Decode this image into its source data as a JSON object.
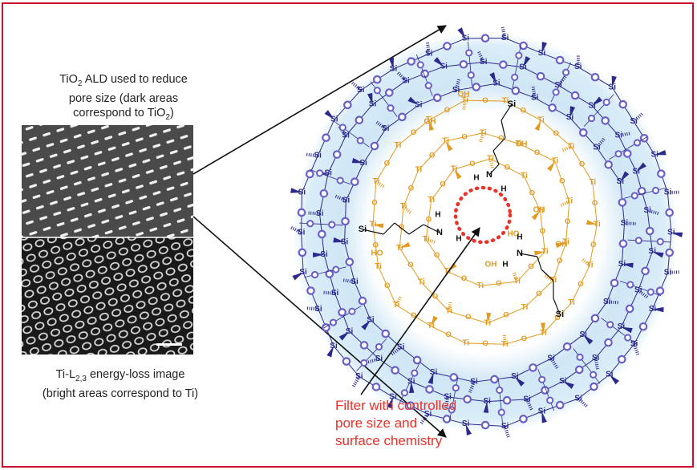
{
  "captions": {
    "top_line1": "TiO",
    "top_sub": "2",
    "top_line1_rest": " ALD used to reduce",
    "top_line2": "pore size (dark areas",
    "top_line3_pre": "correspond to TiO",
    "top_line3_sub": "2",
    "top_line3_post": ")",
    "bottom_line1_pre": "Ti-L",
    "bottom_line1_sub": "2,3",
    "bottom_line1_post": " energy-loss image",
    "bottom_line2": "(bright areas correspond to Ti)"
  },
  "pore_label": {
    "line1": "Filter with controlled",
    "line2": "pore size and",
    "line3": "surface chemistry"
  },
  "atoms": {
    "silicon": "Si",
    "titanium": "Ti",
    "oxygen": "O",
    "nitrogen": "N",
    "hydrogen": "H",
    "hydroxyl": "OH",
    "hydroxyl_rev": "HO"
  },
  "colors": {
    "frame": "#c8102e",
    "silica": "#2b2a8c",
    "oxygen_outer": "#6a5fc4",
    "titania": "#e39a1f",
    "halo": "#cfe6f5",
    "pore": "#e8322a",
    "label": "#e8322a"
  }
}
